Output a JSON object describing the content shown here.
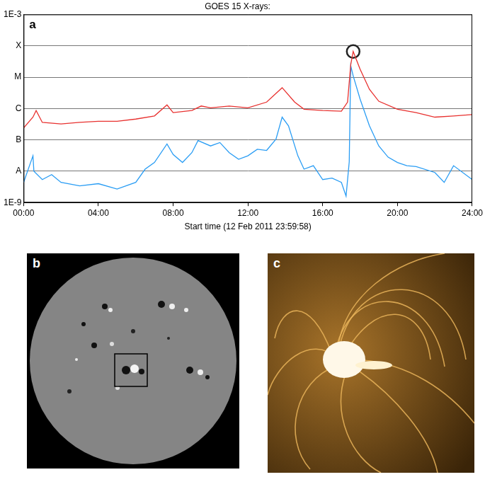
{
  "chart_data": {
    "type": "line",
    "title": "GOES 15 X-rays:",
    "panel_label": "a",
    "x_label": "Start time (12 Feb 2011 23:59:58)",
    "log": "y",
    "grid": true,
    "xlim": [
      0,
      24
    ],
    "xticks": [
      {
        "value": 0,
        "label": "00:00"
      },
      {
        "value": 4,
        "label": "04:00"
      },
      {
        "value": 8,
        "label": "08:00"
      },
      {
        "value": 12,
        "label": "12:00"
      },
      {
        "value": 16,
        "label": "16:00"
      },
      {
        "value": 20,
        "label": "20:00"
      },
      {
        "value": 24,
        "label": "24:00"
      }
    ],
    "ylim": [
      1e-09,
      0.001
    ],
    "yticks": [
      {
        "value": 1e-09,
        "label": "1E-9"
      },
      {
        "value": 1e-08,
        "label": "A"
      },
      {
        "value": 1e-07,
        "label": "B"
      },
      {
        "value": 1e-06,
        "label": "C"
      },
      {
        "value": 1e-05,
        "label": "M"
      },
      {
        "value": 0.0001,
        "label": "X"
      },
      {
        "value": 0.001,
        "label": "1E-3"
      }
    ],
    "series": [
      {
        "color": "#e8312f",
        "x": [
          0,
          0.5,
          0.67,
          1,
          2,
          3,
          4,
          5,
          6,
          7,
          7.67,
          8,
          9,
          9.5,
          10,
          11,
          12,
          13,
          13.83,
          14.5,
          15,
          16,
          17,
          17.33,
          17.5,
          17.63,
          18,
          18.5,
          19,
          20,
          21,
          22,
          23,
          24
        ],
        "values": [
          2.4e-07,
          5.3e-07,
          8.6e-07,
          3.6e-07,
          3.2e-07,
          3.6e-07,
          3.9e-07,
          3.9e-07,
          4.6e-07,
          5.8e-07,
          1.3e-06,
          7.4e-07,
          8.6e-07,
          1.2e-06,
          1.05e-06,
          1.2e-06,
          1.05e-06,
          1.6e-06,
          4.6e-06,
          1.6e-06,
          9.5e-07,
          8.6e-07,
          8.2e-07,
          1.6e-06,
          2.5e-05,
          6.6e-05,
          1.8e-05,
          4.1e-06,
          1.7e-06,
          9.5e-07,
          7.4e-07,
          5.3e-07,
          5.8e-07,
          6.4e-07
        ]
      },
      {
        "color": "#2a9df4",
        "x": [
          0,
          0.5,
          0.55,
          1,
          1.5,
          2,
          3,
          4,
          5,
          6,
          6.5,
          7,
          7.67,
          8,
          8.5,
          9,
          9.33,
          10,
          10.5,
          11,
          11.5,
          12,
          12.5,
          13,
          13.5,
          13.83,
          14.17,
          14.67,
          15,
          15.5,
          16,
          16.5,
          17,
          17.25,
          17.42,
          17.5,
          17.63,
          18,
          18.5,
          19,
          19.5,
          20,
          20.5,
          21,
          22,
          22.5,
          23,
          24
        ],
        "values": [
          4.4e-09,
          3.1e-08,
          1e-08,
          5.4e-09,
          7.8e-09,
          4.4e-09,
          3.4e-09,
          4e-09,
          2.7e-09,
          4.4e-09,
          1.16e-08,
          1.9e-08,
          7.4e-08,
          3.4e-08,
          1.9e-08,
          3.9e-08,
          9.5e-08,
          6.4e-08,
          8.2e-08,
          3.9e-08,
          2.4e-08,
          3.1e-08,
          5e-08,
          4.6e-08,
          1.05e-07,
          5.3e-07,
          2.8e-07,
          3.1e-08,
          1.16e-08,
          1.5e-08,
          5.4e-09,
          6e-09,
          4.4e-09,
          1.6e-09,
          2e-08,
          2.3e-05,
          1.1e-05,
          2e-06,
          2.8e-07,
          6.4e-08,
          2.8e-08,
          1.9e-08,
          1.5e-08,
          1.4e-08,
          9.1e-09,
          4.4e-09,
          1.5e-08,
          5.4e-09
        ]
      }
    ],
    "annotations": [
      {
        "x": 17.63,
        "y": 6.6e-05,
        "marker": "circle"
      }
    ]
  },
  "images": [
    {
      "label": "b"
    },
    {
      "label": "c"
    }
  ]
}
